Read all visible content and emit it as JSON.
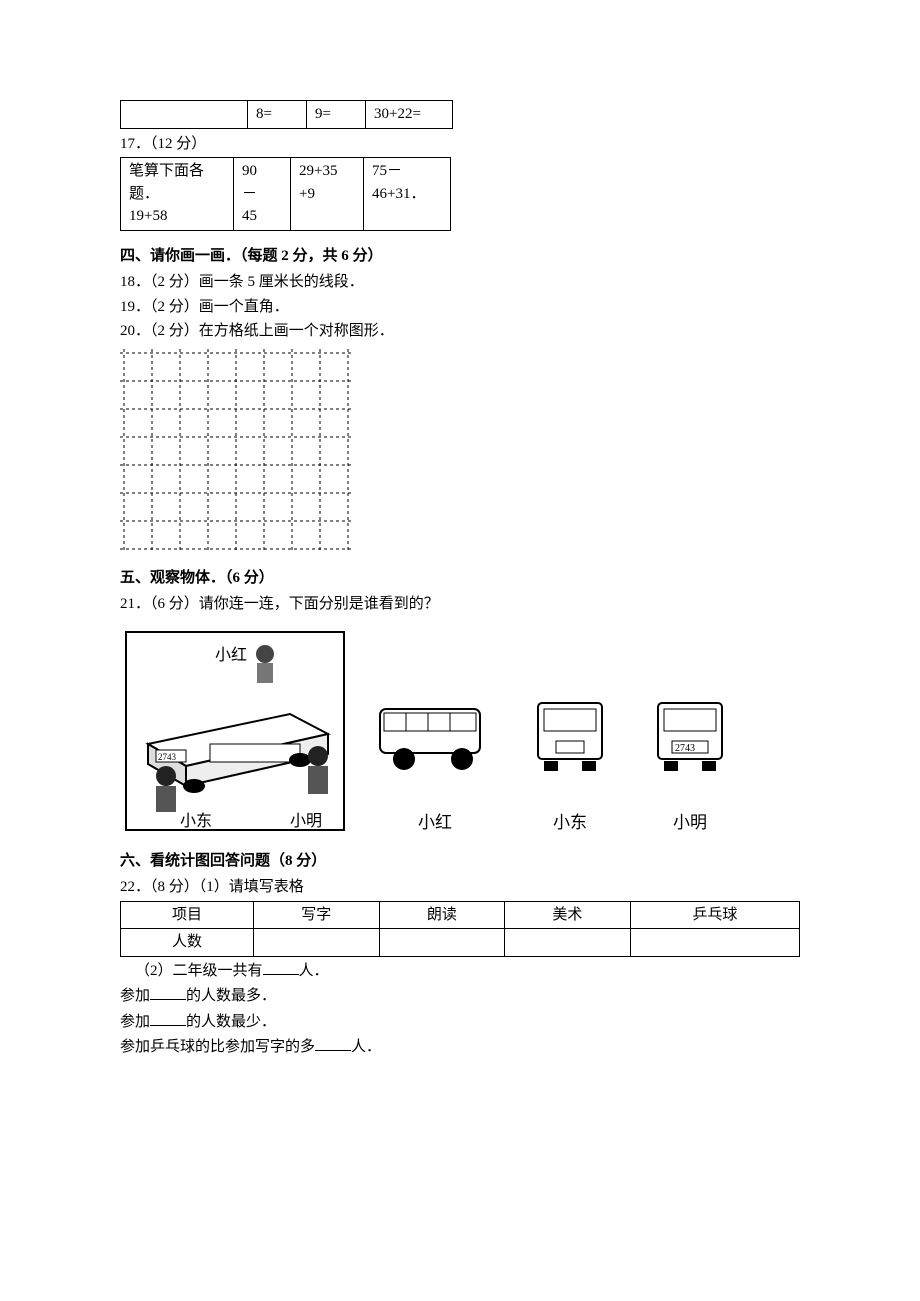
{
  "tableA": {
    "rows": [
      [
        "",
        "8=",
        "9=",
        "30+22="
      ]
    ]
  },
  "q17_label": "17．（12 分）",
  "tableB": {
    "r1": [
      "笔算下面各",
      "90",
      "29+35",
      "75－"
    ],
    "r2": [
      "题．",
      "－",
      "+9",
      "46+31．"
    ],
    "r3": [
      "19+58",
      "45",
      "",
      ""
    ]
  },
  "section4": {
    "title": "四、请你画一画．（每题 2 分，共 6 分）",
    "q18": "18．（2 分）画一条 5 厘米长的线段．",
    "q19": "19．（2 分）画一个直角．",
    "q20": "20．（2 分）在方格纸上画一个对称图形．",
    "grid_style": {
      "cols": 8,
      "rows": 7,
      "cell": 28,
      "dash": "3,3",
      "stroke": "#000000",
      "stroke_width": 1
    }
  },
  "section5": {
    "title": "五、观察物体．（6 分）",
    "q21": "21．（6 分）请你连一连，下面分别是谁看到的？",
    "scene_names": {
      "top": "小红",
      "left": "小东",
      "right": "小明"
    },
    "view_labels": [
      "小红",
      "小东",
      "小明"
    ],
    "plate": "2743",
    "colors": {
      "outline": "#000000",
      "fill": "#ffffff",
      "dark": "#555555"
    }
  },
  "section6": {
    "title": "六、看统计图回答问题（8 分）",
    "q22": "22．（8 分）（1）请填写表格",
    "table_headers": [
      "项目",
      "写字",
      "朗读",
      "美术",
      "乒乓球"
    ],
    "row2_label": "人数",
    "lines": {
      "a_pre": "（2）二年级一共有",
      "a_post": "人．",
      "b_pre": "参加",
      "b_post": "的人数最多．",
      "c_pre": "参加",
      "c_post": "的人数最少．",
      "d_pre": "参加乒乓球的比参加写字的多",
      "d_post": "人．"
    }
  }
}
